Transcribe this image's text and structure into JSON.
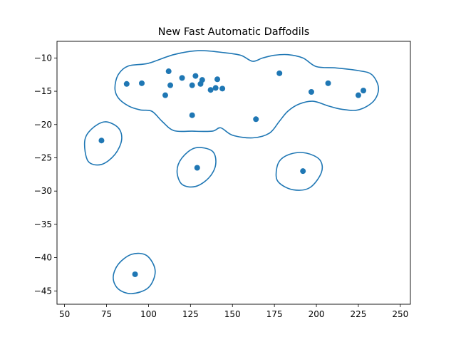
{
  "chart_data": {
    "type": "scatter",
    "title": "New Fast Automatic Daffodils",
    "xlabel": "",
    "ylabel": "",
    "xlim": [
      45.5,
      256
    ],
    "ylim": [
      -47,
      -7.5
    ],
    "xticks": [
      50,
      75,
      100,
      125,
      150,
      175,
      200,
      225,
      250
    ],
    "yticks": [
      -10,
      -15,
      -20,
      -25,
      -30,
      -35,
      -40,
      -45
    ],
    "grid": false,
    "color": "#1f77b4",
    "points": [
      {
        "x": 72,
        "y": -22.4
      },
      {
        "x": 87,
        "y": -13.9
      },
      {
        "x": 96,
        "y": -13.8
      },
      {
        "x": 110,
        "y": -15.6
      },
      {
        "x": 112,
        "y": -12.0
      },
      {
        "x": 113,
        "y": -14.1
      },
      {
        "x": 120,
        "y": -13.0
      },
      {
        "x": 126,
        "y": -14.1
      },
      {
        "x": 126,
        "y": -18.6
      },
      {
        "x": 128,
        "y": -12.7
      },
      {
        "x": 131,
        "y": -13.9
      },
      {
        "x": 132,
        "y": -13.3
      },
      {
        "x": 137,
        "y": -14.8
      },
      {
        "x": 140,
        "y": -14.5
      },
      {
        "x": 141,
        "y": -13.2
      },
      {
        "x": 144,
        "y": -14.6
      },
      {
        "x": 164,
        "y": -19.2
      },
      {
        "x": 178,
        "y": -12.3
      },
      {
        "x": 197,
        "y": -15.1
      },
      {
        "x": 207,
        "y": -13.8
      },
      {
        "x": 225,
        "y": -15.6
      },
      {
        "x": 228,
        "y": -14.9
      },
      {
        "x": 129,
        "y": -26.5
      },
      {
        "x": 192,
        "y": -27.0
      },
      {
        "x": 92,
        "y": -42.5
      }
    ],
    "contours": [
      [
        [
          80,
          -14.5
        ],
        [
          82,
          -12.5
        ],
        [
          88,
          -11.2
        ],
        [
          100,
          -10.8
        ],
        [
          115,
          -9.5
        ],
        [
          130,
          -8.9
        ],
        [
          145,
          -9.2
        ],
        [
          155,
          -9.6
        ],
        [
          162,
          -10.5
        ],
        [
          168,
          -10.0
        ],
        [
          175,
          -9.6
        ],
        [
          183,
          -9.5
        ],
        [
          192,
          -10.0
        ],
        [
          200,
          -11.3
        ],
        [
          212,
          -11.5
        ],
        [
          225,
          -11.9
        ],
        [
          233,
          -12.5
        ],
        [
          237,
          -14.5
        ],
        [
          234,
          -16.5
        ],
        [
          225,
          -17.8
        ],
        [
          215,
          -17.7
        ],
        [
          207,
          -17.2
        ],
        [
          198,
          -16.5
        ],
        [
          190,
          -16.9
        ],
        [
          183,
          -18.0
        ],
        [
          178,
          -19.5
        ],
        [
          172,
          -21.3
        ],
        [
          162,
          -22.0
        ],
        [
          150,
          -21.6
        ],
        [
          143,
          -20.5
        ],
        [
          138,
          -21.0
        ],
        [
          126,
          -21.0
        ],
        [
          115,
          -20.9
        ],
        [
          108,
          -19.5
        ],
        [
          102,
          -18.0
        ],
        [
          95,
          -17.8
        ],
        [
          88,
          -17.2
        ],
        [
          82,
          -16.0
        ],
        [
          80,
          -14.5
        ]
      ],
      [
        [
          64,
          -25.5
        ],
        [
          62,
          -22.5
        ],
        [
          66,
          -20.7
        ],
        [
          74,
          -19.6
        ],
        [
          82,
          -20.5
        ],
        [
          84,
          -22.3
        ],
        [
          80,
          -24.5
        ],
        [
          72,
          -26.0
        ],
        [
          64,
          -25.5
        ]
      ],
      [
        [
          117,
          -27.0
        ],
        [
          120,
          -25.0
        ],
        [
          128,
          -23.5
        ],
        [
          138,
          -24.0
        ],
        [
          140,
          -26.0
        ],
        [
          136,
          -28.0
        ],
        [
          128,
          -29.3
        ],
        [
          120,
          -29.0
        ],
        [
          117,
          -27.0
        ]
      ],
      [
        [
          176,
          -27.5
        ],
        [
          178,
          -25.5
        ],
        [
          185,
          -24.4
        ],
        [
          194,
          -24.3
        ],
        [
          202,
          -25.3
        ],
        [
          203,
          -27.2
        ],
        [
          196,
          -29.5
        ],
        [
          186,
          -29.8
        ],
        [
          178,
          -28.8
        ],
        [
          176,
          -27.5
        ]
      ],
      [
        [
          79,
          -43.0
        ],
        [
          82,
          -41.0
        ],
        [
          90,
          -39.5
        ],
        [
          99,
          -39.7
        ],
        [
          104,
          -42.0
        ],
        [
          100,
          -44.5
        ],
        [
          90,
          -45.4
        ],
        [
          82,
          -44.7
        ],
        [
          79,
          -43.0
        ]
      ]
    ]
  }
}
